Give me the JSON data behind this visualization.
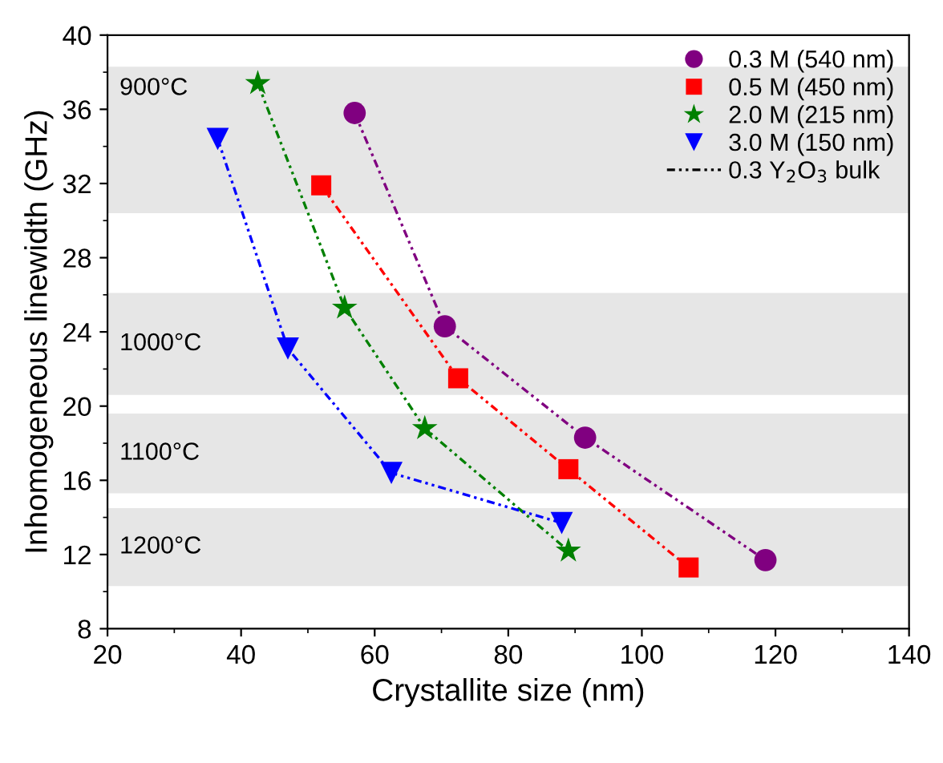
{
  "chart_data": {
    "type": "line",
    "xlabel": "Crystallite size (nm)",
    "ylabel": "Inhomogeneous linewidth (GHz)",
    "xlim": [
      20,
      140
    ],
    "xticks": [
      20,
      40,
      60,
      80,
      100,
      120,
      140
    ],
    "ylim": [
      8,
      40
    ],
    "yticks": [
      8,
      12,
      16,
      20,
      24,
      28,
      32,
      36,
      40
    ],
    "grid": false,
    "legend": "top right",
    "line_style": "dotted",
    "bands": [
      {
        "axis": "y",
        "from": 30.4,
        "to": 38.3,
        "label": "900°C",
        "color": "#e6e6e6"
      },
      {
        "axis": "y",
        "from": 20.6,
        "to": 26.1,
        "label": "1000°C",
        "color": "#e6e6e6"
      },
      {
        "axis": "y",
        "from": 15.3,
        "to": 19.6,
        "label": "1100°C",
        "color": "#e6e6e6"
      },
      {
        "axis": "y",
        "from": 10.3,
        "to": 14.5,
        "label": "1200°C",
        "color": "#e6e6e6"
      }
    ],
    "series": [
      {
        "name": "0.3 M (540 nm)",
        "color": "#800080",
        "marker": "circle",
        "x": [
          57,
          70.5,
          91.5,
          118.5
        ],
        "values": [
          35.8,
          24.3,
          18.3,
          11.7
        ]
      },
      {
        "name": "0.5 M (450 nm)",
        "color": "#ff0000",
        "marker": "square",
        "x": [
          52,
          72.5,
          89,
          107
        ],
        "values": [
          31.9,
          21.5,
          16.6,
          11.3
        ]
      },
      {
        "name": "2.0 M (215 nm)",
        "color": "#008000",
        "marker": "star",
        "x": [
          42.5,
          55.5,
          67.5,
          89
        ],
        "values": [
          37.4,
          25.3,
          18.8,
          12.2
        ]
      },
      {
        "name": "3.0 M (150 nm)",
        "color": "#0000ff",
        "marker": "triangle",
        "x": [
          36.5,
          47,
          62.5,
          88
        ],
        "values": [
          34.4,
          23.1,
          16.4,
          13.7
        ]
      },
      {
        "name": "0.3 Y$_{2}$O$_{3}$ bulk",
        "color": "#000000",
        "marker": "none"
      }
    ]
  }
}
